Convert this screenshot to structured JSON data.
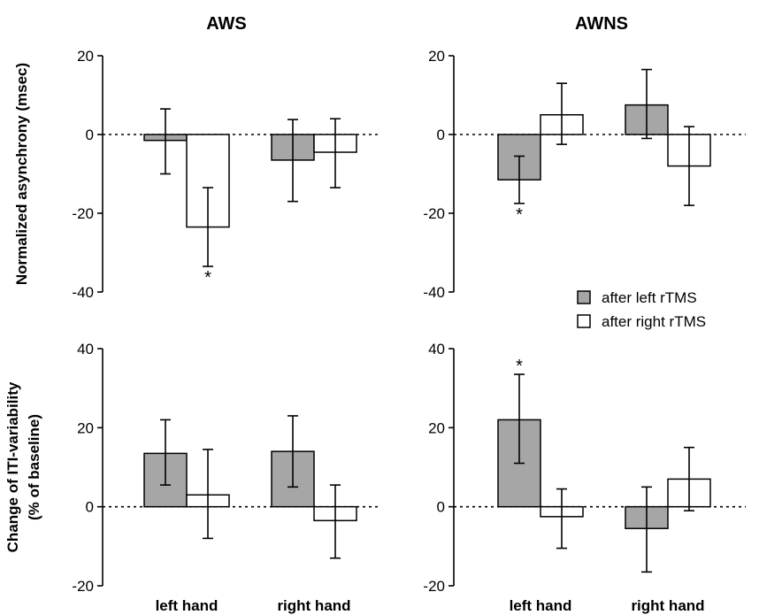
{
  "colors": {
    "after_left": "#a6a6a6",
    "after_right": "#ffffff",
    "axis": "#000000"
  },
  "legend": [
    {
      "name": "after left rTMS",
      "color": "#a6a6a6"
    },
    {
      "name": "after right rTMS",
      "color": "#ffffff"
    }
  ],
  "chart_data": [
    {
      "id": "aws_async",
      "type": "bar",
      "title": "AWS",
      "ylabel": [
        "Normalized asynchrony (msec)"
      ],
      "ylim": [
        -40,
        20
      ],
      "yticks": [
        20,
        0,
        -20,
        -40
      ],
      "categories": [
        "left hand",
        "right hand"
      ],
      "show_categories": false,
      "series": [
        {
          "name": "after left rTMS",
          "values": [
            -1.5,
            -6.5
          ],
          "err_high": [
            6.5,
            3.8
          ],
          "err_low": [
            -10,
            -17
          ]
        },
        {
          "name": "after right rTMS",
          "values": [
            -23.5,
            -4.5
          ],
          "err_high": [
            -13.5,
            4
          ],
          "err_low": [
            -33.5,
            -13.5
          ]
        }
      ],
      "stars": [
        {
          "category": 0,
          "series": 1,
          "y": -36
        }
      ]
    },
    {
      "id": "awns_async",
      "type": "bar",
      "title": "AWNS",
      "ylabel": [],
      "ylim": [
        -40,
        20
      ],
      "yticks": [
        20,
        0,
        -20,
        -40
      ],
      "categories": [
        "left hand",
        "right hand"
      ],
      "show_categories": false,
      "series": [
        {
          "name": "after left rTMS",
          "values": [
            -11.5,
            7.5
          ],
          "err_high": [
            -5.5,
            16.5
          ],
          "err_low": [
            -17.5,
            -1
          ]
        },
        {
          "name": "after right rTMS",
          "values": [
            5,
            -8
          ],
          "err_high": [
            13,
            2
          ],
          "err_low": [
            -2.5,
            -18
          ]
        }
      ],
      "stars": [
        {
          "category": 0,
          "series": 0,
          "y": -20
        }
      ]
    },
    {
      "id": "aws_iti",
      "type": "bar",
      "title": "",
      "ylabel": [
        "Change of ITI-variability",
        "(% of baseline)"
      ],
      "ylim": [
        -20,
        40
      ],
      "yticks": [
        40,
        20,
        0,
        -20
      ],
      "categories": [
        "left hand",
        "right hand"
      ],
      "show_categories": true,
      "series": [
        {
          "name": "after left rTMS",
          "values": [
            13.5,
            14
          ],
          "err_high": [
            22,
            23
          ],
          "err_low": [
            5.5,
            5
          ]
        },
        {
          "name": "after right rTMS",
          "values": [
            3,
            -3.5
          ],
          "err_high": [
            14.5,
            5.5
          ],
          "err_low": [
            -8,
            -13
          ]
        }
      ],
      "stars": []
    },
    {
      "id": "awns_iti",
      "type": "bar",
      "title": "",
      "ylabel": [],
      "ylim": [
        -20,
        40
      ],
      "yticks": [
        40,
        20,
        0,
        -20
      ],
      "categories": [
        "left hand",
        "right hand"
      ],
      "show_categories": true,
      "series": [
        {
          "name": "after left rTMS",
          "values": [
            22,
            -5.5
          ],
          "err_high": [
            33.5,
            5
          ],
          "err_low": [
            11,
            -16.5
          ]
        },
        {
          "name": "after right rTMS",
          "values": [
            -2.5,
            7
          ],
          "err_high": [
            4.5,
            15
          ],
          "err_low": [
            -10.5,
            -1
          ]
        }
      ],
      "stars": [
        {
          "category": 0,
          "series": 0,
          "y": 36
        }
      ]
    }
  ]
}
